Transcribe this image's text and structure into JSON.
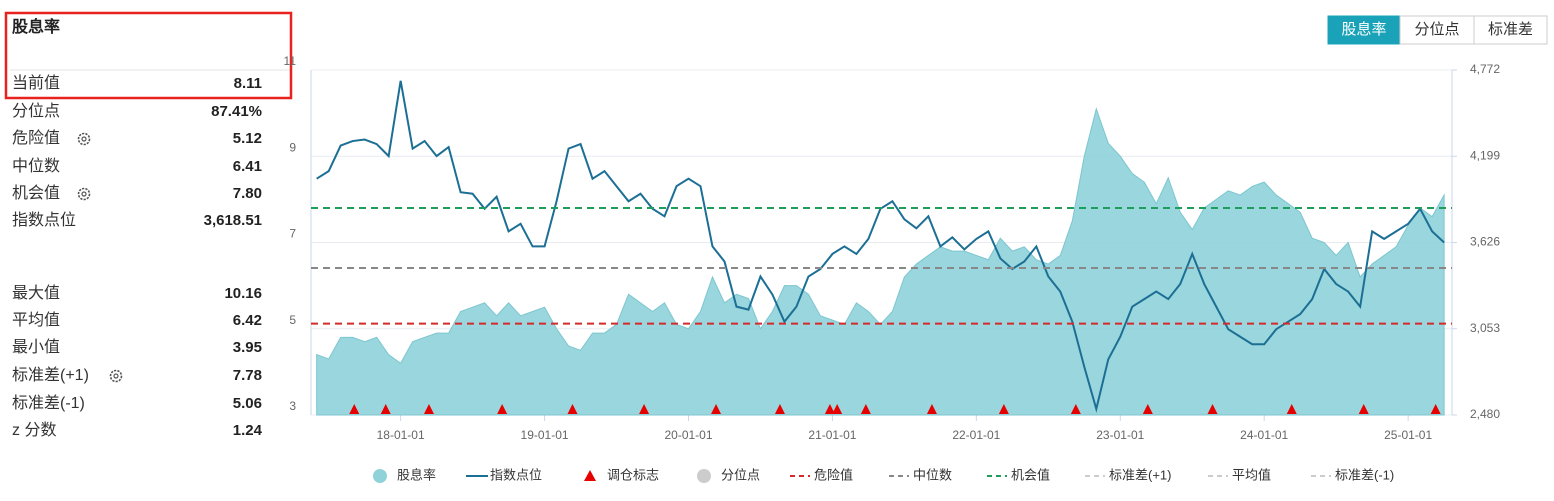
{
  "panel": {
    "title": "股息率",
    "rows": [
      {
        "label": "当前值",
        "value": "8.11"
      },
      {
        "label": "分位点",
        "value": "87.41%"
      },
      {
        "label": "危险值",
        "value": "5.12"
      },
      {
        "label": "中位数",
        "value": "6.41"
      },
      {
        "label": "机会值",
        "value": "7.80"
      },
      {
        "label": "指数点位",
        "value": "3,618.51"
      },
      {
        "label": "最大值",
        "value": "10.16"
      },
      {
        "label": "平均值",
        "value": "6.42"
      },
      {
        "label": "最小值",
        "value": "3.95"
      },
      {
        "label": "标准差(+1)",
        "value": "7.78"
      },
      {
        "label": "标准差(-1)",
        "value": "5.06"
      },
      {
        "label": "z 分数",
        "value": "1.24"
      }
    ]
  },
  "buttons": [
    "股息率",
    "分位点",
    "标准差"
  ],
  "chart_data": {
    "type": "area-line",
    "x": [
      "17-06-01",
      "17-07-01",
      "17-08-01",
      "17-09-01",
      "17-10-01",
      "17-11-01",
      "17-12-01",
      "18-01-01",
      "18-02-01",
      "18-03-01",
      "18-04-01",
      "18-05-01",
      "18-06-01",
      "18-07-01",
      "18-08-01",
      "18-09-01",
      "18-10-01",
      "18-11-01",
      "18-12-01",
      "19-01-01",
      "19-02-01",
      "19-03-01",
      "19-04-01",
      "19-05-01",
      "19-06-01",
      "19-07-01",
      "19-08-01",
      "19-09-01",
      "19-10-01",
      "19-11-01",
      "19-12-01",
      "20-01-01",
      "20-02-01",
      "20-03-01",
      "20-04-01",
      "20-05-01",
      "20-06-01",
      "20-07-01",
      "20-08-01",
      "20-09-01",
      "20-10-01",
      "20-11-01",
      "20-12-01",
      "21-01-01",
      "21-02-01",
      "21-03-01",
      "21-04-01",
      "21-05-01",
      "21-06-01",
      "21-07-01",
      "21-08-01",
      "21-09-01",
      "21-10-01",
      "21-11-01",
      "21-12-01",
      "22-01-01",
      "22-02-01",
      "22-03-01",
      "22-04-01",
      "22-05-01",
      "22-06-01",
      "22-07-01",
      "22-08-01",
      "22-09-01",
      "22-10-01",
      "22-11-01",
      "22-12-01",
      "23-01-01",
      "23-02-01",
      "23-03-01",
      "23-04-01",
      "23-05-01",
      "23-06-01",
      "23-07-01",
      "23-08-01",
      "23-09-01",
      "23-10-01",
      "23-11-01",
      "23-12-01",
      "24-01-01",
      "24-02-01",
      "24-03-01",
      "24-04-01",
      "24-05-01",
      "24-06-01",
      "24-07-01",
      "24-08-01",
      "24-09-01",
      "24-10-01",
      "24-11-01",
      "24-12-01",
      "25-01-01",
      "25-02-01",
      "25-03-01",
      "25-04-01"
    ],
    "series": [
      {
        "name": "股息率",
        "color": "#8fd2d9",
        "kind": "area",
        "values": [
          4.4,
          4.3,
          4.8,
          4.8,
          4.7,
          4.8,
          4.4,
          4.2,
          4.7,
          4.8,
          4.9,
          4.9,
          5.4,
          5.5,
          5.6,
          5.3,
          5.6,
          5.3,
          5.4,
          5.5,
          5.0,
          4.6,
          4.5,
          4.9,
          4.9,
          5.1,
          5.8,
          5.6,
          5.4,
          5.6,
          5.1,
          5.0,
          5.4,
          6.2,
          5.6,
          5.8,
          5.7,
          5.0,
          5.4,
          6.0,
          6.0,
          5.8,
          5.3,
          5.2,
          5.1,
          5.6,
          5.4,
          5.1,
          5.4,
          6.2,
          6.5,
          6.7,
          6.9,
          6.8,
          6.8,
          6.7,
          6.6,
          7.1,
          6.8,
          6.9,
          6.6,
          6.5,
          6.7,
          7.5,
          9.0,
          10.1,
          9.3,
          9.0,
          8.6,
          8.4,
          7.9,
          8.5,
          7.7,
          7.3,
          7.8,
          8.0,
          8.2,
          8.1,
          8.3,
          8.4,
          8.1,
          7.9,
          7.7,
          7.1,
          7.0,
          6.7,
          7.0,
          6.2,
          6.5,
          6.7,
          6.9,
          7.4,
          7.8,
          7.6,
          8.1
        ]
      },
      {
        "name": "指数点位",
        "color": "#1c6f94",
        "kind": "line",
        "axis": "y2",
        "values": [
          4050,
          4100,
          4270,
          4300,
          4310,
          4280,
          4200,
          4700,
          4250,
          4300,
          4200,
          4260,
          3960,
          3950,
          3850,
          3930,
          3700,
          3750,
          3600,
          3600,
          3900,
          4250,
          4280,
          4050,
          4100,
          4000,
          3900,
          3950,
          3850,
          3800,
          4000,
          4050,
          4000,
          3600,
          3500,
          3200,
          3180,
          3400,
          3280,
          3100,
          3200,
          3400,
          3450,
          3550,
          3600,
          3550,
          3650,
          3850,
          3900,
          3780,
          3720,
          3800,
          3600,
          3660,
          3580,
          3650,
          3700,
          3520,
          3450,
          3500,
          3600,
          3400,
          3300,
          3100,
          2800,
          2520,
          2850,
          3000,
          3200,
          3250,
          3300,
          3250,
          3350,
          3550,
          3350,
          3200,
          3050,
          3000,
          2950,
          2950,
          3050,
          3100,
          3150,
          3250,
          3450,
          3350,
          3300,
          3200,
          3700,
          3650,
          3700,
          3750,
          3850,
          3700,
          3626
        ]
      }
    ],
    "rebalance": {
      "name": "调仓标志",
      "color": "#e60000",
      "x": [
        "17-09-05",
        "17-11-24",
        "18-03-12",
        "18-09-15",
        "19-03-11",
        "19-09-10",
        "20-03-10",
        "20-08-20",
        "20-12-25",
        "21-01-13",
        "21-03-25",
        "21-09-10",
        "22-03-10",
        "22-09-10",
        "23-03-10",
        "23-08-22",
        "24-03-10",
        "24-09-10",
        "25-03-10"
      ]
    },
    "reference_lines": [
      {
        "name": "危险值",
        "value": 5.12,
        "color": "#d42a2a"
      },
      {
        "name": "中位数",
        "value": 6.41,
        "color": "#888888"
      },
      {
        "name": "机会值",
        "value": 7.8,
        "color": "#1e9e5a"
      }
    ],
    "hidden_series": [
      {
        "name": "分位点",
        "symbol": "circle"
      },
      {
        "name": "标准差(+1)",
        "symbol": "dash"
      },
      {
        "name": "平均值",
        "symbol": "dash"
      },
      {
        "name": "标准差(-1)",
        "symbol": "dash"
      }
    ],
    "xlim": [
      "17-05-17",
      "25-04-21"
    ],
    "xticks": [
      "18-01-01",
      "19-01-01",
      "20-01-01",
      "21-01-01",
      "22-01-01",
      "23-01-01",
      "24-01-01",
      "25-01-01"
    ],
    "ylim": [
      3,
      11
    ],
    "yticks": [
      3,
      5,
      7,
      9,
      11
    ],
    "y2lim": [
      2480,
      4772
    ],
    "y2ticks": [
      {
        "value": 2480,
        "label": "2,480"
      },
      {
        "value": 3053,
        "label": "3,053"
      },
      {
        "value": 3626,
        "label": "3,626"
      },
      {
        "value": 4199,
        "label": "4,199"
      },
      {
        "value": 4772,
        "label": "4,772"
      }
    ],
    "grid": true
  }
}
